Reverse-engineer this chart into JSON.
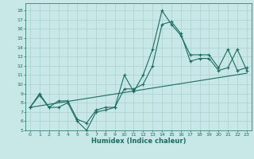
{
  "xlabel": "Humidex (Indice chaleur)",
  "background_color": "#c8e8e8",
  "grid_color": "#aad0d0",
  "line_color": "#1e6b5e",
  "xlim": [
    -0.5,
    23.5
  ],
  "ylim": [
    5,
    18.8
  ],
  "xticks": [
    0,
    1,
    2,
    3,
    4,
    5,
    6,
    7,
    8,
    9,
    10,
    11,
    12,
    13,
    14,
    15,
    16,
    17,
    18,
    19,
    20,
    21,
    22,
    23
  ],
  "yticks": [
    5,
    6,
    7,
    8,
    9,
    10,
    11,
    12,
    13,
    14,
    15,
    16,
    17,
    18
  ],
  "curve1_x": [
    0,
    1,
    2,
    3,
    4,
    5,
    6,
    7,
    8,
    9,
    10,
    11,
    12,
    13,
    14,
    15,
    16,
    17,
    18,
    19,
    20,
    21,
    22,
    23
  ],
  "curve1_y": [
    7.5,
    9.0,
    7.5,
    8.2,
    8.2,
    6.2,
    5.8,
    7.2,
    7.5,
    7.5,
    11.0,
    9.2,
    11.0,
    13.8,
    18.0,
    16.5,
    15.3,
    13.2,
    13.2,
    13.2,
    11.8,
    13.8,
    11.5,
    11.8
  ],
  "curve2_x": [
    0,
    1,
    2,
    3,
    4,
    5,
    6,
    7,
    8,
    9,
    10,
    11,
    12,
    13,
    14,
    15,
    16,
    17,
    18,
    19,
    20,
    21,
    22,
    23
  ],
  "curve2_y": [
    7.5,
    8.8,
    7.5,
    7.5,
    8.0,
    6.0,
    5.0,
    7.0,
    7.2,
    7.5,
    9.5,
    9.5,
    10.0,
    12.0,
    16.5,
    16.8,
    15.5,
    12.5,
    12.8,
    12.8,
    11.5,
    11.8,
    13.8,
    11.5
  ],
  "trend_x": [
    0,
    23
  ],
  "trend_y": [
    7.5,
    11.2
  ]
}
